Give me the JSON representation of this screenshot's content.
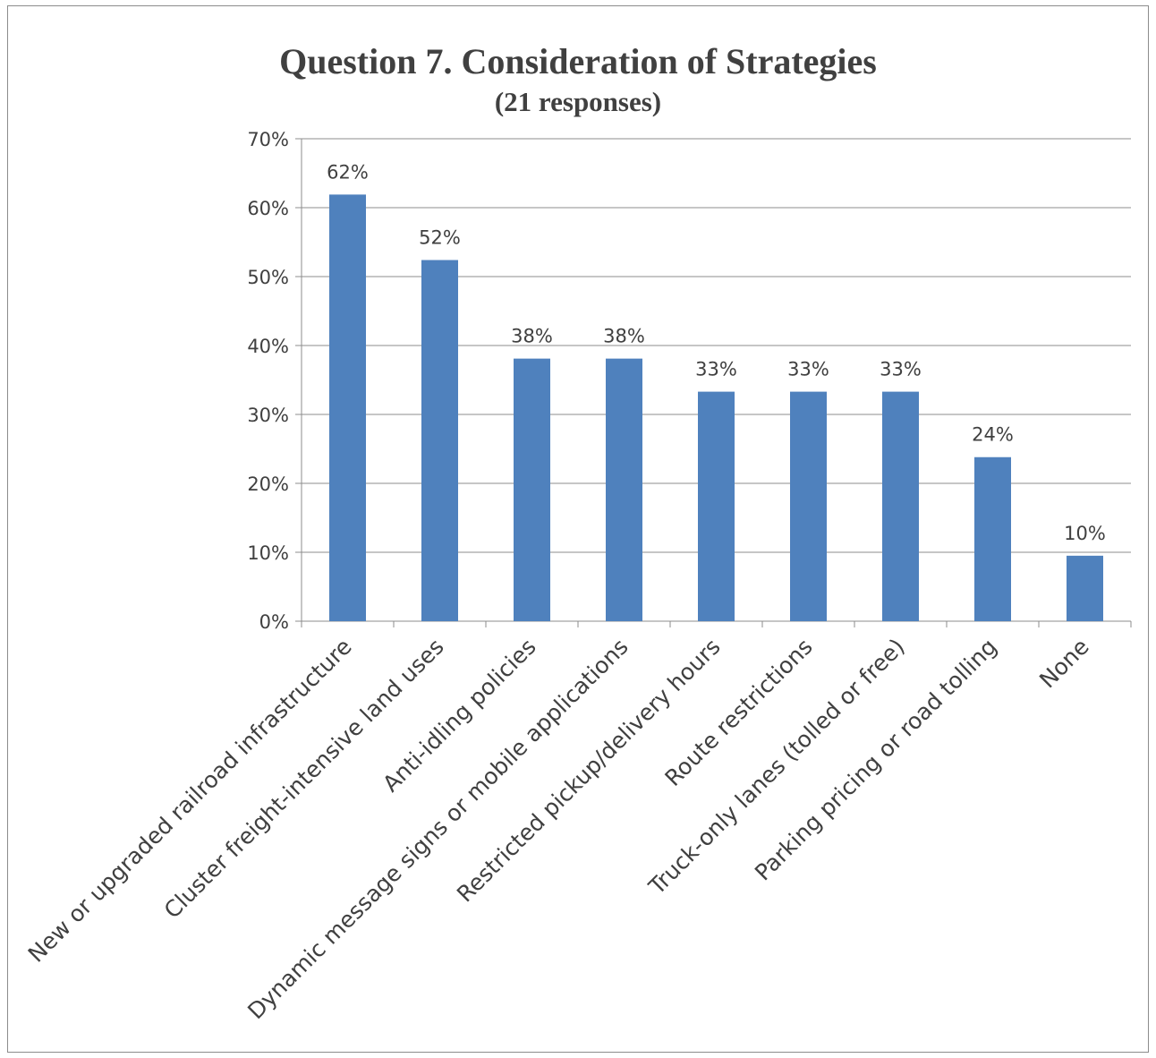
{
  "chart_data": {
    "type": "bar",
    "title": "Question 7. Consideration of Strategies",
    "subtitle": "(21 responses)",
    "categories": [
      "New or upgraded railroad infrastructure",
      "Cluster freight-intensive land uses",
      "Anti-idling policies",
      "Dynamic message signs or mobile applications",
      "Restricted pickup/delivery hours",
      "Route restrictions",
      "Truck-only lanes (tolled or free)",
      "Parking pricing or road tolling",
      "None"
    ],
    "values": [
      62,
      52,
      38,
      38,
      33,
      33,
      33,
      24,
      10
    ],
    "bar_values_exact": [
      61.9,
      52.4,
      38.1,
      38.1,
      33.3,
      33.3,
      33.3,
      23.8,
      9.5
    ],
    "data_labels": [
      "62%",
      "52%",
      "38%",
      "38%",
      "33%",
      "33%",
      "33%",
      "24%",
      "10%"
    ],
    "y_ticks": [
      "0%",
      "10%",
      "20%",
      "30%",
      "40%",
      "50%",
      "60%",
      "70%"
    ],
    "ylim": [
      0,
      70
    ],
    "xlabel": "",
    "ylabel": "",
    "grid": true,
    "legend": "none",
    "colors": {
      "bar": "#4f81bd",
      "grid": "#8c8c8c",
      "text": "#404040"
    }
  }
}
